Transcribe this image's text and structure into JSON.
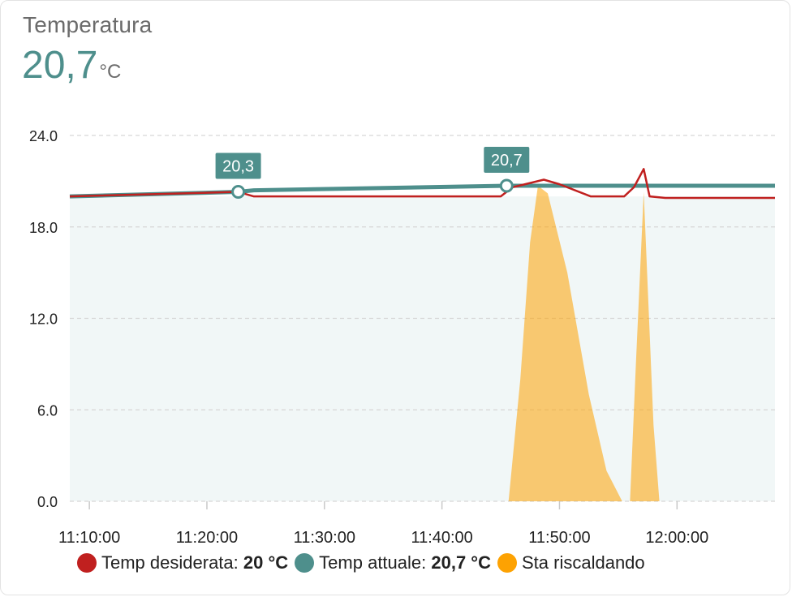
{
  "card": {
    "title": "Temperatura",
    "current_value": "20,7",
    "current_unit": "°C"
  },
  "legend": [
    {
      "label": "Temp desiderata:",
      "value": "20 °C",
      "color": "#c0201f"
    },
    {
      "label": "Temp attuale:",
      "value": "20,7 °C",
      "color": "#4e8f8c"
    },
    {
      "label": "Sta riscaldando",
      "value": "",
      "color": "#fda202"
    }
  ],
  "chart_data": {
    "type": "line",
    "x_unit": "minutes",
    "xlim": [
      "11:08:20",
      "12:08:20"
    ],
    "ylim": [
      0,
      24
    ],
    "y_ticks": [
      "0.0",
      "6.0",
      "12.0",
      "18.0",
      "24.0"
    ],
    "x_ticks": [
      "11:10:00",
      "11:20:00",
      "11:30:00",
      "11:40:00",
      "11:50:00",
      "12:00:00"
    ],
    "grid": true,
    "legend_position": "bottom",
    "series": [
      {
        "name": "Temp desiderata",
        "color": "#c0201f",
        "points": [
          [
            "11:08:20",
            20.0
          ],
          [
            "11:22:40",
            20.3
          ],
          [
            "11:24:00",
            20.0
          ],
          [
            "11:45:00",
            20.0
          ],
          [
            "11:46:00",
            20.6
          ],
          [
            "11:48:40",
            21.1
          ],
          [
            "11:50:00",
            20.8
          ],
          [
            "11:52:40",
            20.0
          ],
          [
            "11:55:30",
            20.0
          ],
          [
            "11:56:20",
            20.6
          ],
          [
            "11:57:10",
            21.8
          ],
          [
            "11:57:40",
            20.0
          ],
          [
            "11:59:00",
            19.9
          ],
          [
            "12:08:20",
            19.9
          ]
        ]
      },
      {
        "name": "Temp attuale",
        "color": "#4e8f8c",
        "points": [
          [
            "11:08:20",
            20.0
          ],
          [
            "11:22:40",
            20.3
          ],
          [
            "11:24:00",
            20.4
          ],
          [
            "11:45:30",
            20.7
          ],
          [
            "12:08:20",
            20.7
          ]
        ],
        "labels": [
          [
            "11:22:40",
            "20,3"
          ],
          [
            "11:45:30",
            "20,7"
          ]
        ]
      },
      {
        "name": "Sta riscaldando",
        "color": "#fda202",
        "points": [
          [
            "11:45:40",
            0
          ],
          [
            "11:46:40",
            8
          ],
          [
            "11:47:30",
            17
          ],
          [
            "11:48:10",
            20.7
          ],
          [
            "11:49:00",
            20.2
          ],
          [
            "11:50:40",
            15
          ],
          [
            "11:52:30",
            7
          ],
          [
            "11:54:00",
            2
          ],
          [
            "11:55:20",
            0
          ],
          [
            "11:56:00",
            0
          ],
          [
            "11:56:30",
            9
          ],
          [
            "11:57:10",
            20.3
          ],
          [
            "11:58:00",
            5
          ],
          [
            "11:58:30",
            0
          ]
        ]
      }
    ]
  }
}
